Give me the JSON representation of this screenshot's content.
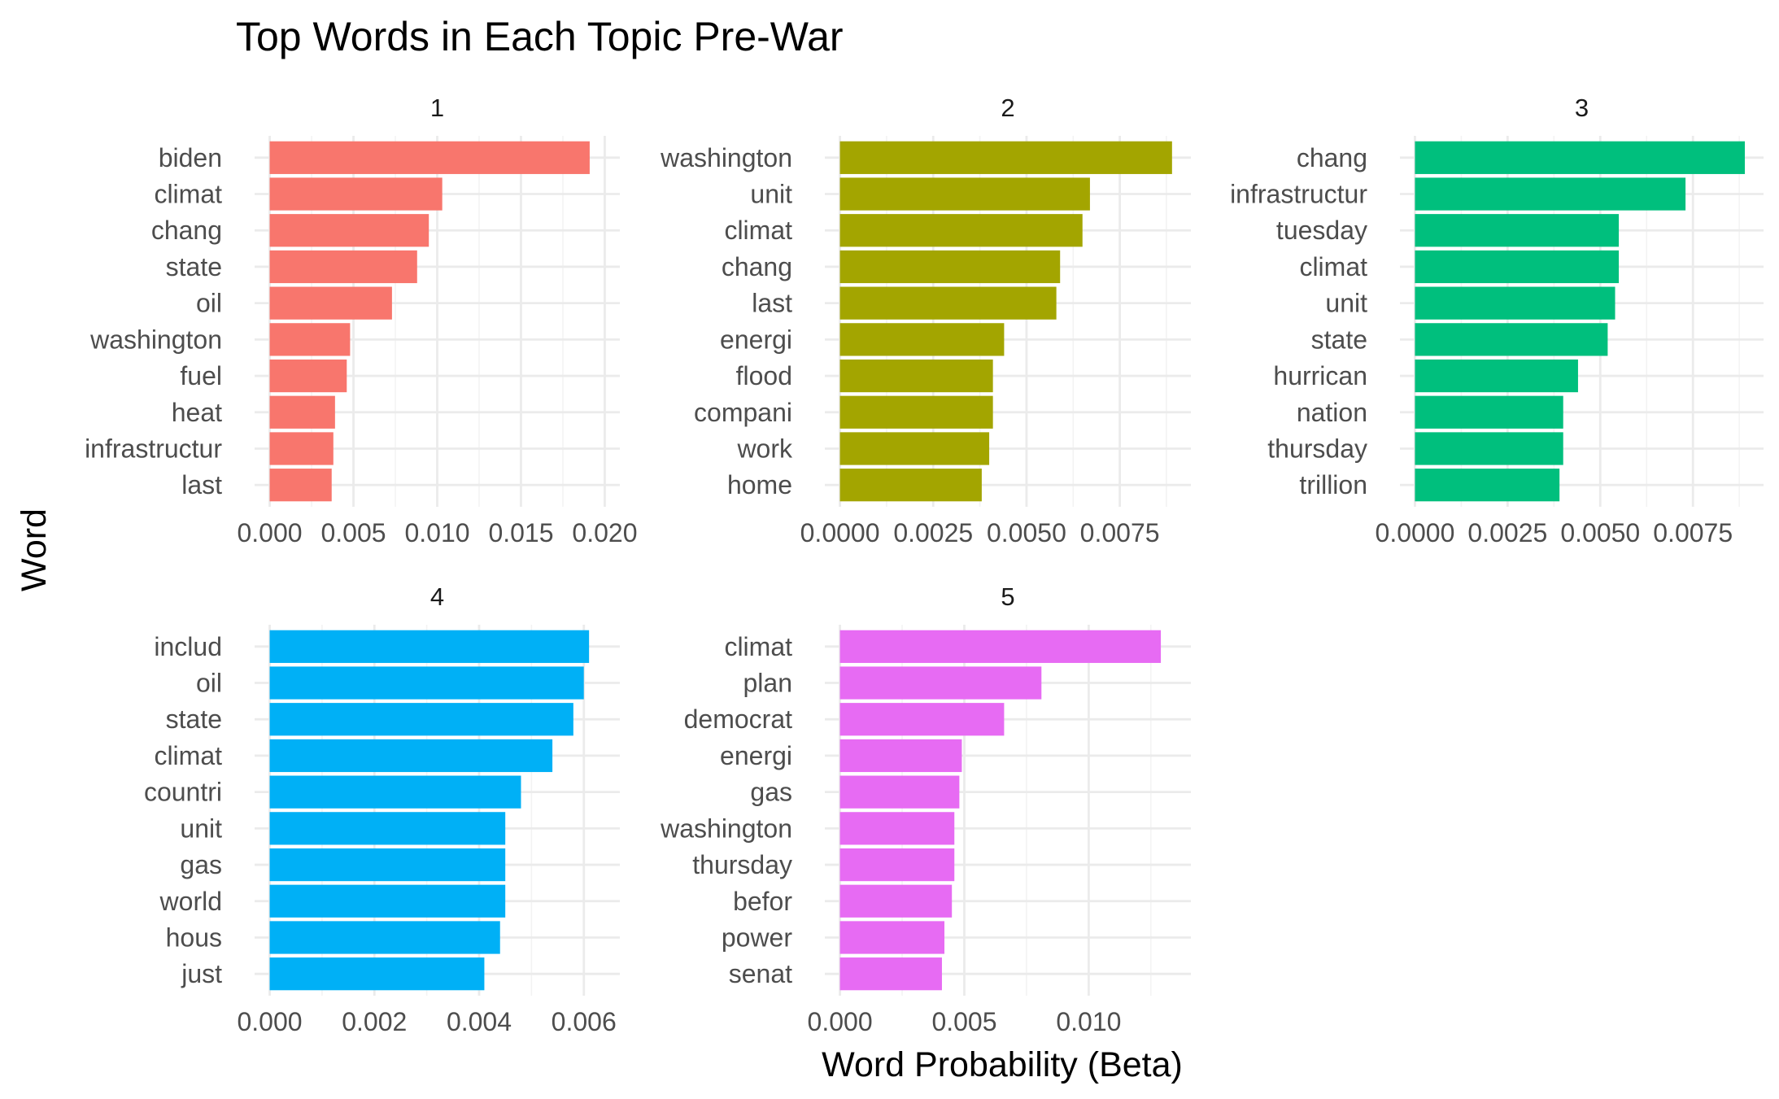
{
  "chart_data": {
    "type": "bar",
    "orientation": "horizontal",
    "title": "Top Words in Each Topic Pre-War",
    "xlabel": "Word Probability (Beta)",
    "ylabel": "Word",
    "grid": true,
    "legend": "none",
    "facets": [
      {
        "label": "1",
        "color": "#F8766D",
        "xlim": [
          0,
          0.02
        ],
        "xticks": [
          0,
          0.005,
          0.01,
          0.015,
          0.02
        ],
        "xtick_labels": [
          "0.000",
          "0.005",
          "0.010",
          "0.015",
          "0.020"
        ],
        "categories": [
          "biden",
          "climat",
          "chang",
          "state",
          "oil",
          "washington",
          "fuel",
          "heat",
          "infrastructur",
          "last"
        ],
        "values": [
          0.0191,
          0.0103,
          0.0095,
          0.0088,
          0.0073,
          0.0048,
          0.0046,
          0.0039,
          0.0038,
          0.0037
        ]
      },
      {
        "label": "2",
        "color": "#A3A500",
        "xlim": [
          0,
          0.009
        ],
        "xticks": [
          0,
          0.0025,
          0.005,
          0.0075
        ],
        "xtick_labels": [
          "0.0000",
          "0.0025",
          "0.0050",
          "0.0075"
        ],
        "categories": [
          "washington",
          "unit",
          "climat",
          "chang",
          "last",
          "energi",
          "flood",
          "compani",
          "work",
          "home"
        ],
        "values": [
          0.0089,
          0.0067,
          0.0065,
          0.0059,
          0.0058,
          0.0044,
          0.0041,
          0.0041,
          0.004,
          0.0038
        ]
      },
      {
        "label": "3",
        "color": "#00BF7D",
        "xlim": [
          0,
          0.009
        ],
        "xticks": [
          0,
          0.0025,
          0.005,
          0.0075
        ],
        "xtick_labels": [
          "0.0000",
          "0.0025",
          "0.0050",
          "0.0075"
        ],
        "categories": [
          "chang",
          "infrastructur",
          "tuesday",
          "climat",
          "unit",
          "state",
          "hurrican",
          "nation",
          "thursday",
          "trillion"
        ],
        "values": [
          0.0089,
          0.0073,
          0.0055,
          0.0055,
          0.0054,
          0.0052,
          0.0044,
          0.004,
          0.004,
          0.0039
        ]
      },
      {
        "label": "4",
        "color": "#00B0F6",
        "xlim": [
          0,
          0.0064
        ],
        "xticks": [
          0,
          0.002,
          0.004,
          0.006
        ],
        "xtick_labels": [
          "0.000",
          "0.002",
          "0.004",
          "0.006"
        ],
        "categories": [
          "includ",
          "oil",
          "state",
          "climat",
          "countri",
          "unit",
          "gas",
          "world",
          "hous",
          "just"
        ],
        "values": [
          0.0061,
          0.006,
          0.0058,
          0.0054,
          0.0048,
          0.0045,
          0.0045,
          0.0045,
          0.0044,
          0.0041
        ]
      },
      {
        "label": "5",
        "color": "#E76BF3",
        "xlim": [
          0,
          0.0135
        ],
        "xticks": [
          0,
          0.005,
          0.01
        ],
        "xtick_labels": [
          "0.000",
          "0.005",
          "0.010"
        ],
        "categories": [
          "climat",
          "plan",
          "democrat",
          "energi",
          "gas",
          "washington",
          "thursday",
          "befor",
          "power",
          "senat"
        ],
        "values": [
          0.0129,
          0.0081,
          0.0066,
          0.0049,
          0.0048,
          0.0046,
          0.0046,
          0.0045,
          0.0042,
          0.0041
        ]
      }
    ]
  }
}
